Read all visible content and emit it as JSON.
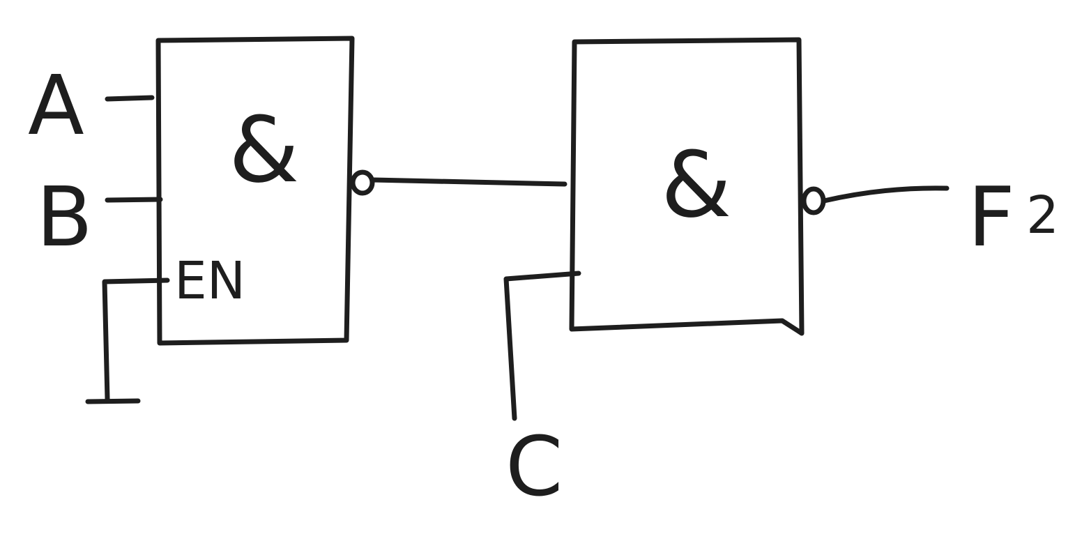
{
  "gates": [
    {
      "symbol": "&",
      "enable_label": "EN",
      "output_inverted": true
    },
    {
      "symbol": "&",
      "output_inverted": true
    }
  ],
  "inputs": {
    "a": "A",
    "b": "B",
    "c": "C"
  },
  "output": {
    "letter": "F",
    "subscript": "2"
  },
  "colors": {
    "ink": "#1e1e1e",
    "paper": "#ffffff"
  }
}
